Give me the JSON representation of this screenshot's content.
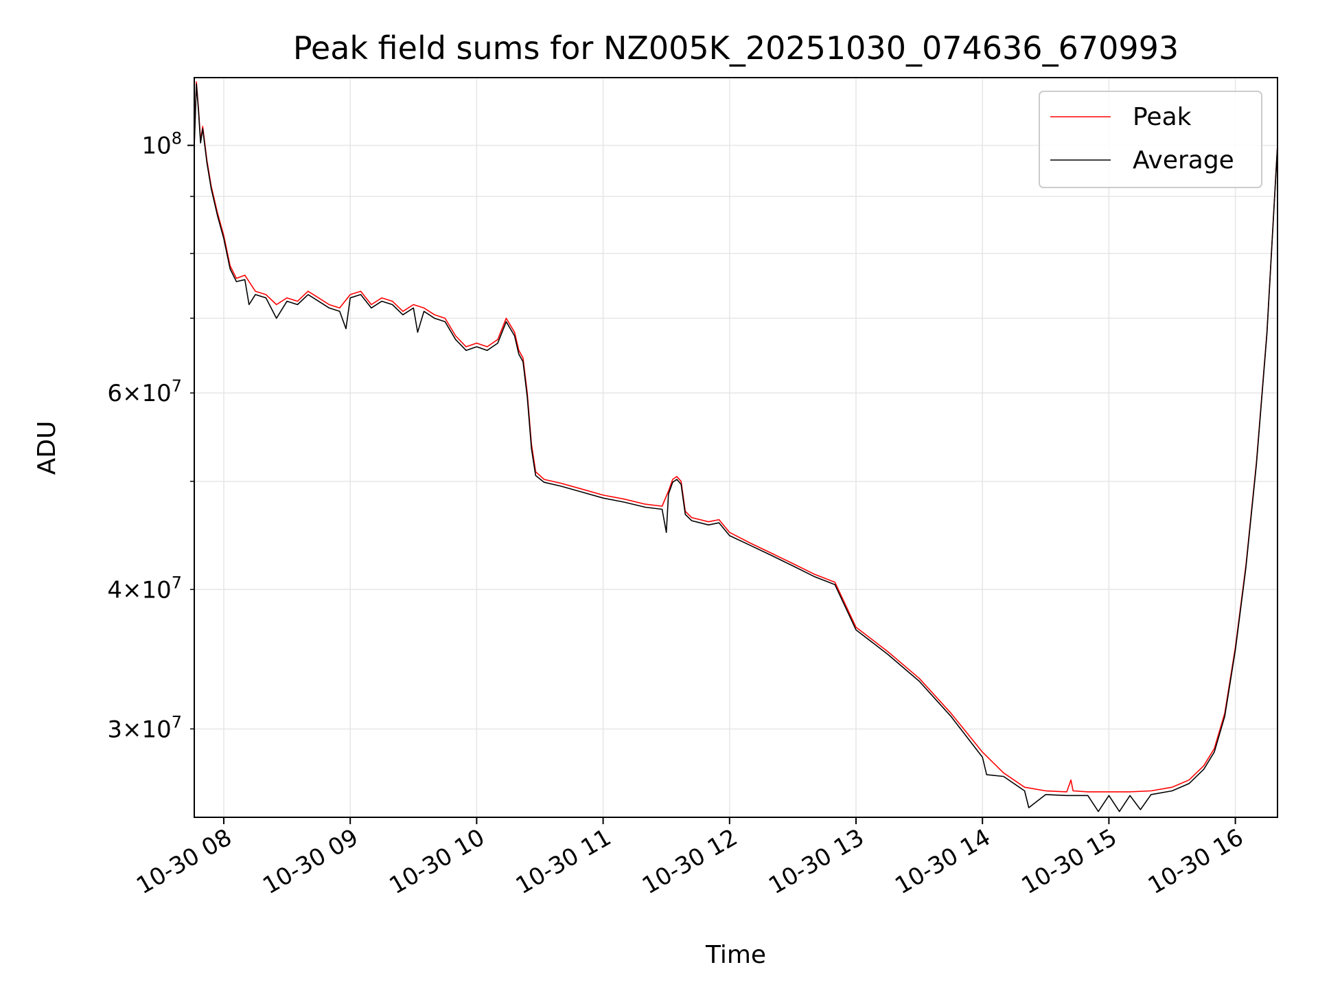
{
  "chart_data": {
    "type": "line",
    "title": "Peak field sums for NZ005K_20251030_074636_670993",
    "xlabel": "Time",
    "ylabel": "ADU",
    "y_scale": "log",
    "xlim": [
      "2025-10-30 07:46",
      "2025-10-30 16:20"
    ],
    "ylim": [
      25000000,
      115000000
    ],
    "grid": true,
    "legend_position": "top-right",
    "x_ticks": [
      {
        "t": "2025-10-30 08:00",
        "label": "10-30 08"
      },
      {
        "t": "2025-10-30 09:00",
        "label": "10-30 09"
      },
      {
        "t": "2025-10-30 10:00",
        "label": "10-30 10"
      },
      {
        "t": "2025-10-30 11:00",
        "label": "10-30 11"
      },
      {
        "t": "2025-10-30 12:00",
        "label": "10-30 12"
      },
      {
        "t": "2025-10-30 13:00",
        "label": "10-30 13"
      },
      {
        "t": "2025-10-30 14:00",
        "label": "10-30 14"
      },
      {
        "t": "2025-10-30 15:00",
        "label": "10-30 15"
      },
      {
        "t": "2025-10-30 16:00",
        "label": "10-30 16"
      }
    ],
    "y_major_ticks": [
      {
        "value": 100000000,
        "base": "10",
        "exp": "8"
      }
    ],
    "y_minor_ticks": [
      {
        "value": 30000000,
        "mant": "3",
        "base": "10",
        "exp": "7"
      },
      {
        "value": 40000000,
        "mant": "4",
        "base": "10",
        "exp": "7"
      },
      {
        "value": 50000000,
        "mant": "",
        "base": "",
        "exp": ""
      },
      {
        "value": 60000000,
        "mant": "6",
        "base": "10",
        "exp": "7"
      },
      {
        "value": 70000000,
        "mant": "",
        "base": "",
        "exp": ""
      },
      {
        "value": 80000000,
        "mant": "",
        "base": "",
        "exp": ""
      },
      {
        "value": 90000000,
        "mant": "",
        "base": "",
        "exp": ""
      }
    ],
    "series": [
      {
        "name": "Peak",
        "color": "#ff0000",
        "points": [
          [
            "2025-10-30 07:46",
            100000000
          ],
          [
            "2025-10-30 07:47",
            114000000
          ],
          [
            "2025-10-30 07:48",
            108000000
          ],
          [
            "2025-10-30 07:49",
            101000000
          ],
          [
            "2025-10-30 07:50",
            104000000
          ],
          [
            "2025-10-30 07:52",
            97000000
          ],
          [
            "2025-10-30 07:54",
            92000000
          ],
          [
            "2025-10-30 07:57",
            87000000
          ],
          [
            "2025-10-30 08:00",
            83000000
          ],
          [
            "2025-10-30 08:03",
            78000000
          ],
          [
            "2025-10-30 08:06",
            76000000
          ],
          [
            "2025-10-30 08:10",
            76500000
          ],
          [
            "2025-10-30 08:15",
            74000000
          ],
          [
            "2025-10-30 08:20",
            73500000
          ],
          [
            "2025-10-30 08:25",
            72000000
          ],
          [
            "2025-10-30 08:30",
            73000000
          ],
          [
            "2025-10-30 08:35",
            72500000
          ],
          [
            "2025-10-30 08:40",
            74000000
          ],
          [
            "2025-10-30 08:45",
            73000000
          ],
          [
            "2025-10-30 08:50",
            72000000
          ],
          [
            "2025-10-30 08:55",
            71500000
          ],
          [
            "2025-10-30 09:00",
            73500000
          ],
          [
            "2025-10-30 09:05",
            74000000
          ],
          [
            "2025-10-30 09:10",
            72000000
          ],
          [
            "2025-10-30 09:15",
            73000000
          ],
          [
            "2025-10-30 09:20",
            72500000
          ],
          [
            "2025-10-30 09:25",
            71000000
          ],
          [
            "2025-10-30 09:30",
            72000000
          ],
          [
            "2025-10-30 09:35",
            71500000
          ],
          [
            "2025-10-30 09:40",
            70500000
          ],
          [
            "2025-10-30 09:45",
            70000000
          ],
          [
            "2025-10-30 09:50",
            67500000
          ],
          [
            "2025-10-30 09:55",
            66000000
          ],
          [
            "2025-10-30 10:00",
            66500000
          ],
          [
            "2025-10-30 10:05",
            66000000
          ],
          [
            "2025-10-30 10:10",
            67000000
          ],
          [
            "2025-10-30 10:14",
            70000000
          ],
          [
            "2025-10-30 10:18",
            68000000
          ],
          [
            "2025-10-30 10:20",
            65500000
          ],
          [
            "2025-10-30 10:22",
            64500000
          ],
          [
            "2025-10-30 10:24",
            60000000
          ],
          [
            "2025-10-30 10:26",
            54000000
          ],
          [
            "2025-10-30 10:28",
            51000000
          ],
          [
            "2025-10-30 10:32",
            50200000
          ],
          [
            "2025-10-30 10:40",
            49800000
          ],
          [
            "2025-10-30 10:50",
            49200000
          ],
          [
            "2025-10-30 11:00",
            48600000
          ],
          [
            "2025-10-30 11:10",
            48200000
          ],
          [
            "2025-10-30 11:20",
            47700000
          ],
          [
            "2025-10-30 11:28",
            47500000
          ],
          [
            "2025-10-30 11:31",
            49000000
          ],
          [
            "2025-10-30 11:33",
            50200000
          ],
          [
            "2025-10-30 11:35",
            50500000
          ],
          [
            "2025-10-30 11:37",
            50000000
          ],
          [
            "2025-10-30 11:39",
            47000000
          ],
          [
            "2025-10-30 11:42",
            46400000
          ],
          [
            "2025-10-30 11:50",
            46000000
          ],
          [
            "2025-10-30 11:55",
            46200000
          ],
          [
            "2025-10-30 12:00",
            45000000
          ],
          [
            "2025-10-30 12:10",
            44000000
          ],
          [
            "2025-10-30 12:20",
            43100000
          ],
          [
            "2025-10-30 12:30",
            42200000
          ],
          [
            "2025-10-30 12:40",
            41300000
          ],
          [
            "2025-10-30 12:50",
            40600000
          ],
          [
            "2025-10-30 13:00",
            37000000
          ],
          [
            "2025-10-30 13:15",
            35200000
          ],
          [
            "2025-10-30 13:30",
            33300000
          ],
          [
            "2025-10-30 13:45",
            31000000
          ],
          [
            "2025-10-30 14:00",
            28600000
          ],
          [
            "2025-10-30 14:10",
            27400000
          ],
          [
            "2025-10-30 14:20",
            26600000
          ],
          [
            "2025-10-30 14:30",
            26400000
          ],
          [
            "2025-10-30 14:40",
            26350000
          ],
          [
            "2025-10-30 14:42",
            27000000
          ],
          [
            "2025-10-30 14:43",
            26400000
          ],
          [
            "2025-10-30 14:50",
            26350000
          ],
          [
            "2025-10-30 15:00",
            26350000
          ],
          [
            "2025-10-30 15:10",
            26350000
          ],
          [
            "2025-10-30 15:20",
            26400000
          ],
          [
            "2025-10-30 15:30",
            26600000
          ],
          [
            "2025-10-30 15:38",
            27000000
          ],
          [
            "2025-10-30 15:45",
            27800000
          ],
          [
            "2025-10-30 15:50",
            28800000
          ],
          [
            "2025-10-30 15:55",
            31000000
          ],
          [
            "2025-10-30 16:00",
            35500000
          ],
          [
            "2025-10-30 16:05",
            42000000
          ],
          [
            "2025-10-30 16:10",
            52000000
          ],
          [
            "2025-10-30 16:15",
            68000000
          ],
          [
            "2025-10-30 16:20",
            100000000
          ]
        ]
      },
      {
        "name": "Average",
        "color": "#000000",
        "points": [
          [
            "2025-10-30 07:46",
            100000000
          ],
          [
            "2025-10-30 07:47",
            113500000
          ],
          [
            "2025-10-30 07:48",
            107500000
          ],
          [
            "2025-10-30 07:49",
            100500000
          ],
          [
            "2025-10-30 07:50",
            103500000
          ],
          [
            "2025-10-30 07:52",
            96500000
          ],
          [
            "2025-10-30 07:54",
            91500000
          ],
          [
            "2025-10-30 07:57",
            86500000
          ],
          [
            "2025-10-30 08:00",
            82500000
          ],
          [
            "2025-10-30 08:03",
            77500000
          ],
          [
            "2025-10-30 08:06",
            75500000
          ],
          [
            "2025-10-30 08:10",
            75800000
          ],
          [
            "2025-10-30 08:12",
            72000000
          ],
          [
            "2025-10-30 08:15",
            73500000
          ],
          [
            "2025-10-30 08:20",
            73000000
          ],
          [
            "2025-10-30 08:25",
            70000000
          ],
          [
            "2025-10-30 08:30",
            72500000
          ],
          [
            "2025-10-30 08:35",
            72000000
          ],
          [
            "2025-10-30 08:40",
            73500000
          ],
          [
            "2025-10-30 08:45",
            72500000
          ],
          [
            "2025-10-30 08:50",
            71500000
          ],
          [
            "2025-10-30 08:55",
            71000000
          ],
          [
            "2025-10-30 08:58",
            68500000
          ],
          [
            "2025-10-30 09:00",
            73000000
          ],
          [
            "2025-10-30 09:05",
            73500000
          ],
          [
            "2025-10-30 09:10",
            71500000
          ],
          [
            "2025-10-30 09:15",
            72500000
          ],
          [
            "2025-10-30 09:20",
            72000000
          ],
          [
            "2025-10-30 09:25",
            70500000
          ],
          [
            "2025-10-30 09:30",
            71500000
          ],
          [
            "2025-10-30 09:32",
            68000000
          ],
          [
            "2025-10-30 09:35",
            71000000
          ],
          [
            "2025-10-30 09:40",
            70000000
          ],
          [
            "2025-10-30 09:45",
            69500000
          ],
          [
            "2025-10-30 09:50",
            67000000
          ],
          [
            "2025-10-30 09:55",
            65500000
          ],
          [
            "2025-10-30 10:00",
            66000000
          ],
          [
            "2025-10-30 10:05",
            65500000
          ],
          [
            "2025-10-30 10:10",
            66500000
          ],
          [
            "2025-10-30 10:14",
            69500000
          ],
          [
            "2025-10-30 10:18",
            67500000
          ],
          [
            "2025-10-30 10:20",
            65000000
          ],
          [
            "2025-10-30 10:22",
            64000000
          ],
          [
            "2025-10-30 10:24",
            59500000
          ],
          [
            "2025-10-30 10:26",
            53500000
          ],
          [
            "2025-10-30 10:28",
            50600000
          ],
          [
            "2025-10-30 10:32",
            49900000
          ],
          [
            "2025-10-30 10:40",
            49500000
          ],
          [
            "2025-10-30 10:50",
            48900000
          ],
          [
            "2025-10-30 11:00",
            48300000
          ],
          [
            "2025-10-30 11:10",
            47900000
          ],
          [
            "2025-10-30 11:20",
            47400000
          ],
          [
            "2025-10-30 11:28",
            47200000
          ],
          [
            "2025-10-30 11:30",
            45000000
          ],
          [
            "2025-10-30 11:31",
            48700000
          ],
          [
            "2025-10-30 11:33",
            49900000
          ],
          [
            "2025-10-30 11:35",
            50200000
          ],
          [
            "2025-10-30 11:37",
            49700000
          ],
          [
            "2025-10-30 11:39",
            46700000
          ],
          [
            "2025-10-30 11:42",
            46100000
          ],
          [
            "2025-10-30 11:50",
            45700000
          ],
          [
            "2025-10-30 11:55",
            45900000
          ],
          [
            "2025-10-30 12:00",
            44700000
          ],
          [
            "2025-10-30 12:10",
            43800000
          ],
          [
            "2025-10-30 12:20",
            42900000
          ],
          [
            "2025-10-30 12:30",
            42000000
          ],
          [
            "2025-10-30 12:40",
            41100000
          ],
          [
            "2025-10-30 12:50",
            40400000
          ],
          [
            "2025-10-30 13:00",
            36800000
          ],
          [
            "2025-10-30 13:15",
            35000000
          ],
          [
            "2025-10-30 13:30",
            33100000
          ],
          [
            "2025-10-30 13:45",
            30800000
          ],
          [
            "2025-10-30 14:00",
            28300000
          ],
          [
            "2025-10-30 14:02",
            27300000
          ],
          [
            "2025-10-30 14:10",
            27200000
          ],
          [
            "2025-10-30 14:20",
            26400000
          ],
          [
            "2025-10-30 14:22",
            25500000
          ],
          [
            "2025-10-30 14:30",
            26200000
          ],
          [
            "2025-10-30 14:40",
            26150000
          ],
          [
            "2025-10-30 14:50",
            26150000
          ],
          [
            "2025-10-30 14:55",
            25300000
          ],
          [
            "2025-10-30 15:00",
            26150000
          ],
          [
            "2025-10-30 15:05",
            25300000
          ],
          [
            "2025-10-30 15:10",
            26150000
          ],
          [
            "2025-10-30 15:15",
            25400000
          ],
          [
            "2025-10-30 15:20",
            26200000
          ],
          [
            "2025-10-30 15:30",
            26400000
          ],
          [
            "2025-10-30 15:38",
            26800000
          ],
          [
            "2025-10-30 15:45",
            27600000
          ],
          [
            "2025-10-30 15:50",
            28600000
          ],
          [
            "2025-10-30 15:55",
            30800000
          ],
          [
            "2025-10-30 16:00",
            35300000
          ],
          [
            "2025-10-30 16:05",
            41800000
          ],
          [
            "2025-10-30 16:10",
            51800000
          ],
          [
            "2025-10-30 16:15",
            67800000
          ],
          [
            "2025-10-30 16:20",
            100000000
          ]
        ]
      }
    ]
  }
}
